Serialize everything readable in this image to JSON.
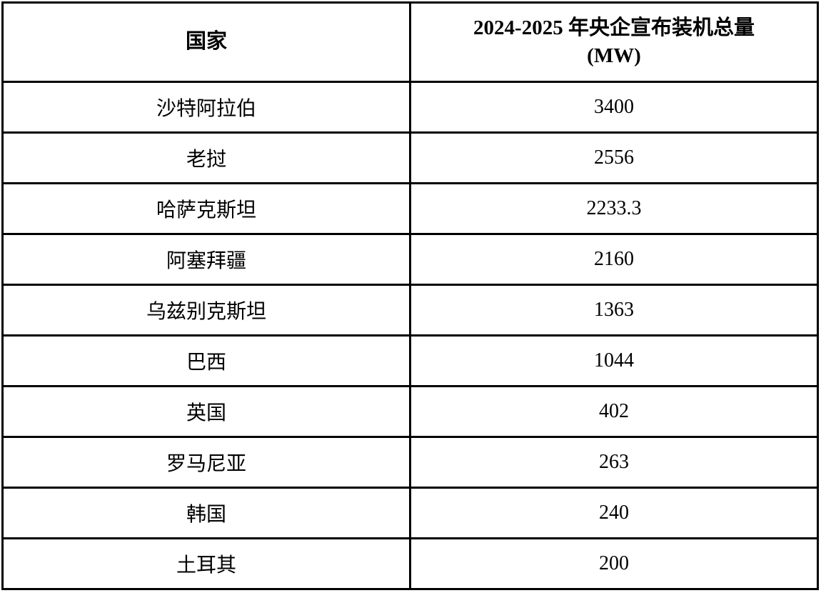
{
  "table": {
    "header": {
      "country": "国家",
      "capacity_line1": "2024-2025 年央企宣布装机总量",
      "capacity_line2": "(MW)"
    },
    "rows": [
      {
        "country": "沙特阿拉伯",
        "value": "3400"
      },
      {
        "country": "老挝",
        "value": "2556"
      },
      {
        "country": "哈萨克斯坦",
        "value": "2233.3"
      },
      {
        "country": "阿塞拜疆",
        "value": "2160"
      },
      {
        "country": "乌兹别克斯坦",
        "value": "1363"
      },
      {
        "country": "巴西",
        "value": "1044"
      },
      {
        "country": "英国",
        "value": "402"
      },
      {
        "country": "罗马尼亚",
        "value": "263"
      },
      {
        "country": "韩国",
        "value": "240"
      },
      {
        "country": "土耳其",
        "value": "200"
      }
    ]
  },
  "chart_data": {
    "type": "table",
    "title": "",
    "columns": [
      "国家",
      "2024-2025 年央企宣布装机总量 (MW)"
    ],
    "categories": [
      "沙特阿拉伯",
      "老挝",
      "哈萨克斯坦",
      "阿塞拜疆",
      "乌兹别克斯坦",
      "巴西",
      "英国",
      "罗马尼亚",
      "韩国",
      "土耳其"
    ],
    "values": [
      3400,
      2556,
      2233.3,
      2160,
      1363,
      1044,
      402,
      263,
      240,
      200
    ],
    "layout": {
      "grid": true,
      "legend": "none",
      "header_rows": 1,
      "body_rows": 10
    }
  },
  "colors": {
    "border": "#000000",
    "text": "#000000",
    "background": "#ffffff"
  }
}
